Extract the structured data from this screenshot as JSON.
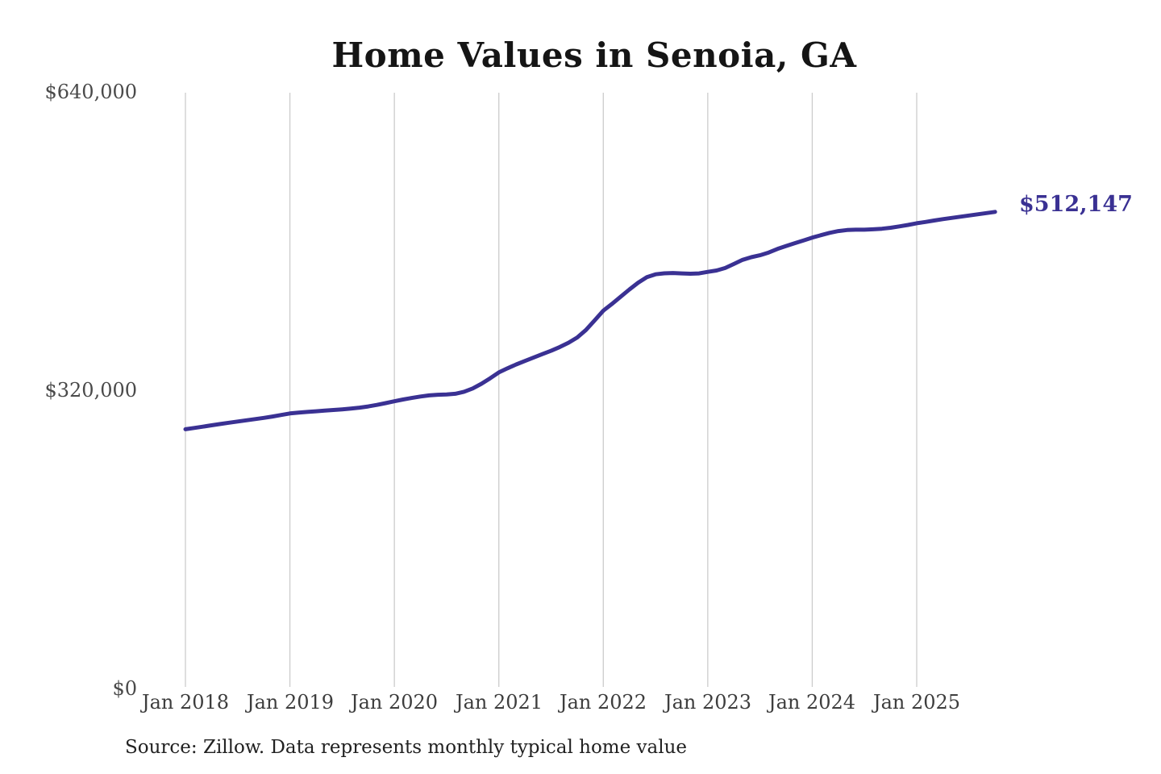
{
  "page": {
    "background_color": "#ffffff"
  },
  "chart_data": {
    "type": "line",
    "title": "Home Values in Senoia, GA",
    "xlabel": "",
    "ylabel": "",
    "x_ticks": [
      "Jan 2018",
      "Jan 2019",
      "Jan 2020",
      "Jan 2021",
      "Jan 2022",
      "Jan 2023",
      "Jan 2024",
      "Jan 2025"
    ],
    "y_tick_labels": [
      "$640,000",
      "$320,000",
      "$0"
    ],
    "y_tick_values": [
      640000,
      320000,
      0
    ],
    "ylim": [
      0,
      640000
    ],
    "grid": "vertical-only",
    "legend_position": "none",
    "accent_color": "#3a3193",
    "grid_color": "#cccccc",
    "end_label": "$512,147",
    "end_value": 512147,
    "source_note": "Source: Zillow. Data represents monthly typical home value",
    "series": [
      {
        "name": "Monthly typical home value",
        "start_month": "2018-01",
        "end_month": "2025-10",
        "frequency": "monthly",
        "values": [
          279000,
          280400,
          281800,
          283200,
          284600,
          286000,
          287300,
          288600,
          289900,
          291200,
          292700,
          294300,
          296000,
          296800,
          297600,
          298300,
          299000,
          299700,
          300400,
          301200,
          302200,
          303500,
          305100,
          307000,
          309000,
          310900,
          312600,
          314100,
          315300,
          316000,
          316300,
          317100,
          319200,
          322800,
          327800,
          333700,
          340000,
          344400,
          348500,
          352300,
          356000,
          359600,
          363200,
          367200,
          371800,
          377400,
          385500,
          395800,
          406200,
          413500,
          421300,
          429000,
          436200,
          442100,
          445200,
          446300,
          446600,
          446200,
          445800,
          446200,
          447800,
          449300,
          452000,
          456300,
          460700,
          463600,
          465600,
          468600,
          472400,
          475600,
          478600,
          481600,
          484600,
          487200,
          489700,
          491600,
          492700,
          493100,
          493100,
          493500,
          494100,
          495100,
          496600,
          498200,
          500000,
          501400,
          502900,
          504400,
          505700,
          507000,
          508300,
          509600,
          510900,
          512147
        ]
      }
    ]
  }
}
